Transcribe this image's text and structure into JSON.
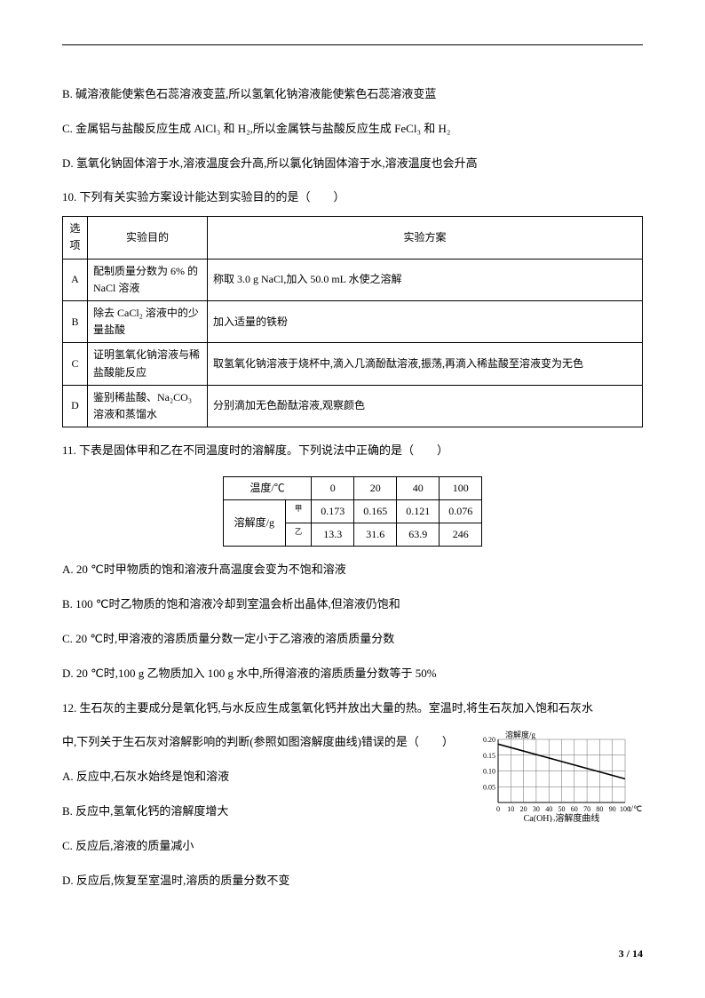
{
  "items": {
    "b": "B. 碱溶液能使紫色石蕊溶液变蓝,所以氢氧化钠溶液能使紫色石蕊溶液变蓝",
    "c": "C. 金属铝与盐酸反应生成 AlCl₃ 和 H₂,所以金属铁与盐酸反应生成 FeCl₃ 和 H₂",
    "d": "D. 氢氧化钠固体溶于水,溶液温度会升高,所以氯化钠固体溶于水,溶液温度也会升高"
  },
  "q10": {
    "stem": "10. 下列有关实验方案设计能达到实验目的的是（　　）",
    "headers": [
      "选项",
      "实验目的",
      "实验方案"
    ],
    "rows": [
      {
        "opt": "A",
        "purpose": "配制质量分数为 6% 的 NaCl 溶液",
        "plan": "称取 3.0 g NaCl,加入 50.0 mL 水使之溶解"
      },
      {
        "opt": "B",
        "purpose": "除去 CaCl₂ 溶液中的少量盐酸",
        "plan": "加入适量的铁粉"
      },
      {
        "opt": "C",
        "purpose": "证明氢氧化钠溶液与稀盐酸能反应",
        "plan": "取氢氧化钠溶液于烧杯中,滴入几滴酚酞溶液,振荡,再滴入稀盐酸至溶液变为无色"
      },
      {
        "opt": "D",
        "purpose": "鉴别稀盐酸、Na₂CO₃ 溶液和蒸馏水",
        "plan": "分别滴加无色酚酞溶液,观察颜色"
      }
    ]
  },
  "q11": {
    "stem": "11. 下表是固体甲和乙在不同温度时的溶解度。下列说法中正确的是（　　）",
    "table": {
      "temp_label": "温度/℃",
      "sol_label": "溶解度/g",
      "temps": [
        "0",
        "20",
        "40",
        "100"
      ],
      "row_a_label": "甲",
      "row_b_label": "乙",
      "row_a": [
        "0.173",
        "0.165",
        "0.121",
        "0.076"
      ],
      "row_b": [
        "13.3",
        "31.6",
        "63.9",
        "246"
      ]
    },
    "opts": {
      "a": "A. 20 ℃时甲物质的饱和溶液升高温度会变为不饱和溶液",
      "b": "B. 100 ℃时乙物质的饱和溶液冷却到室温会析出晶体,但溶液仍饱和",
      "c": "C. 20 ℃时,甲溶液的溶质质量分数一定小于乙溶液的溶质质量分数",
      "d": "D. 20 ℃时,100 g 乙物质加入 100 g 水中,所得溶液的溶质质量分数等于 50%"
    }
  },
  "q12": {
    "stem1": "12. 生石灰的主要成分是氧化钙,与水反应生成氢氧化钙并放出大量的热。室温时,将生石灰加入饱和石灰水",
    "stem2": "中,下列关于生石灰对溶解影响的判断(参照如图溶解度曲线)错误的是（　　）",
    "opts": {
      "a": "A. 反应中,石灰水始终是饱和溶液",
      "b": "B. 反应中,氢氧化钙的溶解度增大",
      "c": "C. 反应后,溶液的质量减小",
      "d": "D. 反应后,恢复至室温时,溶质的质量分数不变"
    },
    "chart": {
      "y_label": "溶解度/g",
      "x_label_right": "t/℃",
      "caption": "Ca(OH)₂溶解度曲线",
      "y_ticks": [
        "0.05",
        "0.10",
        "0.15",
        "0.20"
      ],
      "x_ticks": [
        "0",
        "10",
        "20",
        "30",
        "40",
        "50",
        "60",
        "70",
        "80",
        "90",
        "100"
      ],
      "xlim": [
        0,
        100
      ],
      "ylim": [
        0,
        0.2
      ],
      "line_points": [
        [
          0,
          0.185
        ],
        [
          100,
          0.075
        ]
      ],
      "grid_color": "#666666",
      "line_color": "#000000",
      "axis_color": "#000000",
      "background_color": "#ffffff"
    }
  },
  "footer": {
    "page": "3",
    "sep": " / ",
    "total": "14"
  }
}
